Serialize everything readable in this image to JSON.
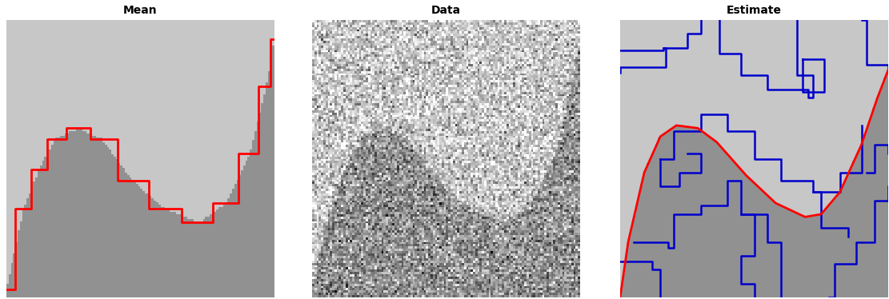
{
  "chart_data": [
    {
      "type": "image",
      "title": "Mean",
      "tick_labels": false,
      "boundary": {
        "color": "#ff0000",
        "x": [
          0,
          0.064,
          0.122,
          0.181,
          0.268,
          0.356,
          0.472,
          0.589,
          0.72,
          0.822,
          0.91,
          0.968,
          1.0
        ],
        "y": [
          0.03,
          0.32,
          0.46,
          0.57,
          0.61,
          0.57,
          0.42,
          0.32,
          0.27,
          0.34,
          0.52,
          0.76,
          0.93
        ]
      },
      "levels": {
        "above": 0.78,
        "below": 0.57
      }
    },
    {
      "type": "noisy_image",
      "title": "Data",
      "tick_labels": false,
      "boundary": {
        "x": [
          0,
          0.064,
          0.122,
          0.181,
          0.268,
          0.356,
          0.472,
          0.589,
          0.72,
          0.822,
          0.91,
          0.968,
          1.0
        ],
        "y": [
          0.03,
          0.32,
          0.46,
          0.57,
          0.61,
          0.57,
          0.42,
          0.32,
          0.27,
          0.34,
          0.52,
          0.76,
          0.93
        ]
      },
      "levels": {
        "above": 0.78,
        "below": 0.57
      },
      "noise_sd": 0.16
    },
    {
      "type": "segmentation",
      "title": "Estimate",
      "tick_labels": false,
      "boundary": {
        "color": "#ff0000",
        "x": [
          0,
          0.03,
          0.09,
          0.15,
          0.21,
          0.29,
          0.36,
          0.47,
          0.58,
          0.69,
          0.75,
          0.82,
          0.9,
          0.96,
          1.0
        ],
        "y": [
          0.0,
          0.2,
          0.45,
          0.58,
          0.62,
          0.61,
          0.56,
          0.44,
          0.34,
          0.29,
          0.3,
          0.38,
          0.55,
          0.72,
          0.82
        ]
      },
      "levels": {
        "above": 0.78,
        "below": 0.57
      },
      "regions": {
        "color": "#0000cc",
        "lines": [
          [
            [
              0.0,
              0.89
            ],
            [
              0.16,
              0.9
            ],
            [
              0.17,
              0.83
            ],
            [
              0.0,
              0.81
            ]
          ],
          [
            [
              0.16,
              0.9
            ],
            [
              0.25,
              0.95
            ],
            [
              0.3,
              1.0
            ]
          ],
          [
            [
              0.37,
              1.0
            ],
            [
              0.37,
              0.88
            ],
            [
              0.45,
              0.8
            ],
            [
              0.55,
              0.75
            ],
            [
              0.7,
              0.72
            ],
            [
              0.72,
              0.8
            ],
            [
              0.66,
              0.9
            ],
            [
              0.66,
              1.0
            ]
          ],
          [
            [
              0.68,
              0.86
            ],
            [
              0.76,
              0.86
            ],
            [
              0.76,
              0.74
            ],
            [
              0.68,
              0.74
            ],
            [
              0.68,
              0.86
            ]
          ],
          [
            [
              0.9,
              1.0
            ],
            [
              0.92,
              0.84
            ],
            [
              1.0,
              0.82
            ]
          ],
          [
            [
              0.15,
              0.5
            ],
            [
              0.2,
              0.6
            ],
            [
              0.3,
              0.66
            ],
            [
              0.4,
              0.6
            ],
            [
              0.5,
              0.5
            ],
            [
              0.6,
              0.42
            ],
            [
              0.72,
              0.38
            ],
            [
              0.82,
              0.45
            ],
            [
              0.9,
              0.62
            ]
          ],
          [
            [
              0.05,
              0.2
            ],
            [
              0.18,
              0.18
            ],
            [
              0.2,
              0.3
            ],
            [
              0.3,
              0.33
            ],
            [
              0.4,
              0.42
            ],
            [
              0.45,
              0.3
            ],
            [
              0.55,
              0.2
            ],
            [
              0.6,
              0.0
            ]
          ],
          [
            [
              0.0,
              0.13
            ],
            [
              0.12,
              0.1
            ],
            [
              0.15,
              0.0
            ]
          ],
          [
            [
              0.25,
              0.52
            ],
            [
              0.3,
              0.45
            ],
            [
              0.22,
              0.4
            ],
            [
              0.15,
              0.5
            ]
          ],
          [
            [
              0.45,
              0.3
            ],
            [
              0.5,
              0.15
            ],
            [
              0.45,
              0.05
            ],
            [
              0.5,
              0.0
            ]
          ],
          [
            [
              0.78,
              0.0
            ],
            [
              0.8,
              0.12
            ],
            [
              0.88,
              0.2
            ],
            [
              0.95,
              0.35
            ],
            [
              1.0,
              0.4
            ]
          ],
          [
            [
              0.72,
              0.38
            ],
            [
              0.75,
              0.25
            ],
            [
              0.85,
              0.22
            ]
          ],
          [
            [
              0.92,
              0.45
            ],
            [
              0.95,
              0.55
            ],
            [
              1.0,
              0.52
            ]
          ]
        ]
      }
    }
  ]
}
